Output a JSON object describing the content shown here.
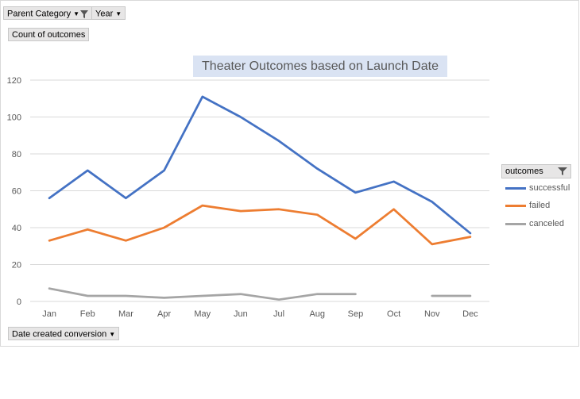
{
  "filters": {
    "parent_category": "Parent Category",
    "year": "Year",
    "value_field": "Count of outcomes",
    "axis_field": "Date created conversion"
  },
  "legend": {
    "title": "outcomes",
    "items": [
      "successful",
      "failed",
      "canceled"
    ]
  },
  "chart_data": {
    "type": "line",
    "title": "Theater Outcomes based on Launch Date",
    "xlabel": "",
    "ylabel": "",
    "categories": [
      "Jan",
      "Feb",
      "Mar",
      "Apr",
      "May",
      "Jun",
      "Jul",
      "Aug",
      "Sep",
      "Oct",
      "Nov",
      "Dec"
    ],
    "ylim": [
      0,
      120
    ],
    "yticks": [
      0,
      20,
      40,
      60,
      80,
      100,
      120
    ],
    "grid": true,
    "legend_position": "right",
    "series": [
      {
        "name": "successful",
        "color": "#4472c4",
        "values": [
          56,
          71,
          56,
          71,
          111,
          100,
          87,
          72,
          59,
          65,
          54,
          37
        ]
      },
      {
        "name": "failed",
        "color": "#ed7d31",
        "values": [
          33,
          39,
          33,
          40,
          52,
          49,
          50,
          47,
          34,
          50,
          31,
          35
        ]
      },
      {
        "name": "canceled",
        "color": "#a5a5a5",
        "values": [
          7,
          3,
          3,
          2,
          3,
          4,
          1,
          4,
          4,
          null,
          3,
          3
        ]
      }
    ]
  }
}
